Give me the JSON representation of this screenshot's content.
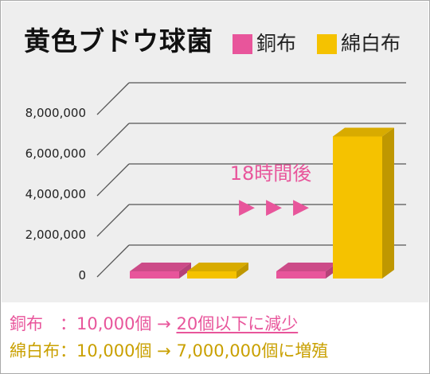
{
  "chart_data": {
    "type": "bar",
    "title": "黄色ブドウ球菌",
    "series": [
      {
        "name": "銅布",
        "color": "#e8559b",
        "values": [
          10000,
          20
        ]
      },
      {
        "name": "綿白布",
        "color": "#f5c200",
        "values": [
          10000,
          7000000
        ]
      }
    ],
    "ylim": [
      0,
      8000000
    ],
    "yticks": [
      0,
      2000000,
      4000000,
      6000000,
      8000000
    ],
    "ytick_labels": [
      "0",
      "2,000,000",
      "4,000,000",
      "6,000,000",
      "8,000,000"
    ],
    "annotation": "18時間後",
    "arrow_symbol": "▶",
    "grid": true,
    "legend": "top-right"
  },
  "captions": [
    {
      "label": "銅布　：",
      "before": "10,000個",
      "arrow": "→",
      "after": "20個以下に減少",
      "color": "#e8559b"
    },
    {
      "label": "綿白布：",
      "before": "10,000個",
      "arrow": "→",
      "after": "7,000,000個に増殖",
      "color": "#c9a000"
    }
  ],
  "colors": {
    "gridline": "#555555",
    "annotation": "#e8559b",
    "tick_text": "#222222"
  }
}
